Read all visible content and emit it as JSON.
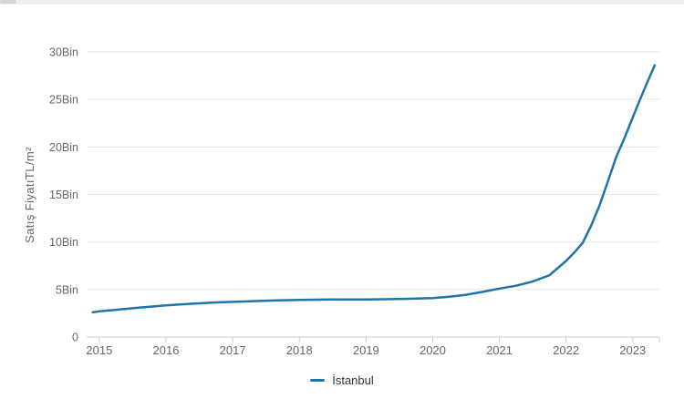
{
  "window": {
    "scrollbar": {
      "track_color": "#efefef",
      "thumb_color": "#d6d6d6"
    }
  },
  "chart_data": {
    "type": "line",
    "title": "",
    "xlabel": "",
    "ylabel": "Satış FiyatıTL/m²",
    "unit": "TL/m²",
    "grid": true,
    "legend_position": "bottom-center",
    "xlim": [
      2014.81,
      2023.4
    ],
    "ylim": [
      0,
      30000
    ],
    "yticks": {
      "values": [
        0,
        5000,
        10000,
        15000,
        20000,
        25000,
        30000
      ],
      "labels": [
        "0",
        "5Bin",
        "10Bin",
        "15Bin",
        "20Bin",
        "25Bin",
        "30Bin"
      ]
    },
    "xticks": {
      "values": [
        2015,
        2016,
        2017,
        2018,
        2019,
        2020,
        2021,
        2022,
        2023
      ],
      "labels": [
        "2015",
        "2016",
        "2017",
        "2018",
        "2019",
        "2020",
        "2021",
        "2022",
        "2023"
      ]
    },
    "x": [
      2014.9,
      2015,
      2015.25,
      2015.5,
      2015.75,
      2016,
      2016.25,
      2016.5,
      2016.75,
      2017,
      2017.25,
      2017.5,
      2017.75,
      2018,
      2018.25,
      2018.5,
      2018.75,
      2019,
      2019.25,
      2019.5,
      2019.75,
      2020,
      2020.25,
      2020.5,
      2020.75,
      2021,
      2021.25,
      2021.5,
      2021.75,
      2022,
      2022.125,
      2022.25,
      2022.375,
      2022.5,
      2022.625,
      2022.75,
      2022.875,
      2023,
      2023.08,
      2023.17,
      2023.25,
      2023.33
    ],
    "series": [
      {
        "name": "İstanbul",
        "color": "#1f74a8",
        "values": [
          2600,
          2700,
          2870,
          3030,
          3180,
          3330,
          3450,
          3550,
          3640,
          3700,
          3760,
          3820,
          3870,
          3900,
          3930,
          3950,
          3950,
          3960,
          3980,
          4000,
          4040,
          4100,
          4250,
          4450,
          4750,
          5100,
          5400,
          5850,
          6500,
          8000,
          8900,
          9900,
          11700,
          13800,
          16300,
          18900,
          20900,
          23100,
          24500,
          26000,
          27300,
          28600
        ]
      }
    ],
    "colors": {
      "grid": "#e6e6e6",
      "axis": "#cccccc",
      "tick": "#cccccc",
      "axis_label": "#666666",
      "legend_text": "#333333"
    }
  }
}
